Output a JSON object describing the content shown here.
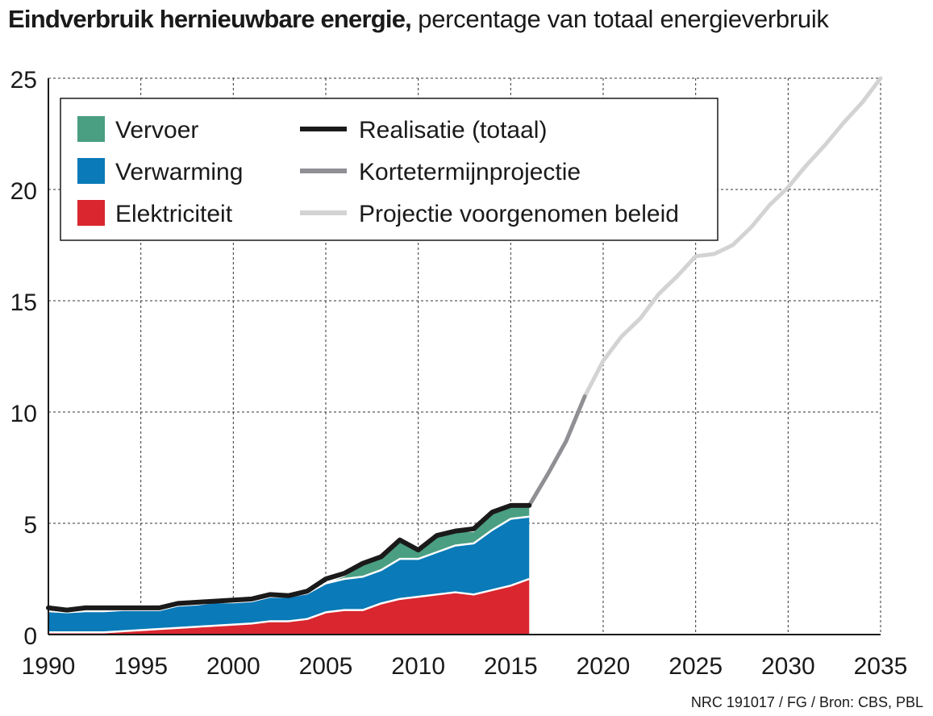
{
  "header": {
    "title_bold": "Eindverbruik hernieuwbare energie,",
    "title_rest": " percentage van totaal energieverbruik"
  },
  "footer": {
    "source": "NRC 191017 / FG / Bron: CBS, PBL"
  },
  "colors": {
    "vervoer": "#4a9e82",
    "verwarming": "#0a7ab8",
    "elektriciteit": "#d9262f",
    "realisatie": "#1a1a1a",
    "kortetermijn": "#8f8f94",
    "voorgenomen": "#d3d3d3"
  },
  "chart_data": {
    "type": "area",
    "title": "Eindverbruik hernieuwbare energie, percentage van totaal energieverbruik",
    "xlim": [
      1990,
      2035
    ],
    "ylim": [
      0,
      25
    ],
    "x_ticks": [
      1990,
      1995,
      2000,
      2005,
      2010,
      2015,
      2020,
      2025,
      2030,
      2035
    ],
    "y_ticks": [
      0,
      5,
      10,
      15,
      20,
      25
    ],
    "grid": true,
    "legend_position": "top-left",
    "years": [
      1990,
      1991,
      1992,
      1993,
      1994,
      1995,
      1996,
      1997,
      1998,
      1999,
      2000,
      2001,
      2002,
      2003,
      2004,
      2005,
      2006,
      2007,
      2008,
      2009,
      2010,
      2011,
      2012,
      2013,
      2014,
      2015,
      2016
    ],
    "stacked_series": [
      {
        "name": "Elektriciteit",
        "color_key": "elektriciteit",
        "values": [
          0.1,
          0.1,
          0.1,
          0.1,
          0.15,
          0.2,
          0.25,
          0.3,
          0.35,
          0.4,
          0.45,
          0.5,
          0.6,
          0.6,
          0.7,
          1.0,
          1.1,
          1.1,
          1.4,
          1.6,
          1.7,
          1.8,
          1.9,
          1.8,
          2.0,
          2.2,
          2.5
        ]
      },
      {
        "name": "Verwarming",
        "color_key": "verwarming",
        "values": [
          0.95,
          0.9,
          0.95,
          0.95,
          0.95,
          0.9,
          0.85,
          1.0,
          1.0,
          1.05,
          1.0,
          1.0,
          1.1,
          1.1,
          1.15,
          1.3,
          1.4,
          1.5,
          1.5,
          1.8,
          1.7,
          1.9,
          2.1,
          2.3,
          2.7,
          3.0,
          2.8
        ]
      },
      {
        "name": "Vervoer",
        "color_key": "vervoer",
        "values": [
          0,
          0,
          0,
          0,
          0,
          0,
          0,
          0,
          0,
          0,
          0,
          0,
          0,
          0,
          0,
          0,
          0.1,
          0.6,
          0.6,
          0.8,
          0.3,
          0.7,
          0.6,
          0.5,
          0.7,
          0.5,
          0.4
        ]
      }
    ],
    "lines": [
      {
        "name": "Realisatie (totaal)",
        "color_key": "realisatie",
        "x": [
          1990,
          1991,
          1992,
          1993,
          1994,
          1995,
          1996,
          1997,
          1998,
          1999,
          2000,
          2001,
          2002,
          2003,
          2004,
          2005,
          2006,
          2007,
          2008,
          2009,
          2010,
          2011,
          2012,
          2013,
          2014,
          2015,
          2016
        ],
        "y": [
          1.2,
          1.1,
          1.2,
          1.2,
          1.2,
          1.2,
          1.2,
          1.4,
          1.45,
          1.5,
          1.55,
          1.6,
          1.8,
          1.75,
          1.95,
          2.5,
          2.75,
          3.2,
          3.5,
          4.25,
          3.8,
          4.45,
          4.65,
          4.75,
          5.5,
          5.8,
          5.8
        ]
      },
      {
        "name": "Kortetermijnprojectie",
        "color_key": "kortetermijn",
        "x": [
          2016,
          2017,
          2018,
          2019
        ],
        "y": [
          5.8,
          7.2,
          8.7,
          10.7
        ]
      },
      {
        "name": "Projectie voorgenomen beleid",
        "color_key": "voorgenomen",
        "x": [
          2019,
          2020,
          2021,
          2022,
          2023,
          2024,
          2025,
          2026,
          2027,
          2028,
          2029,
          2030,
          2031,
          2032,
          2033,
          2034,
          2035
        ],
        "y": [
          10.7,
          12.3,
          13.4,
          14.2,
          15.3,
          16.1,
          17.0,
          17.1,
          17.5,
          18.3,
          19.3,
          20.1,
          21.1,
          22.0,
          23.0,
          23.9,
          25.0
        ]
      }
    ],
    "legend": {
      "areas": [
        "Vervoer",
        "Verwarming",
        "Elektriciteit"
      ],
      "lines": [
        "Realisatie (totaal)",
        "Kortetermijnprojectie",
        "Projectie voorgenomen beleid"
      ]
    }
  }
}
